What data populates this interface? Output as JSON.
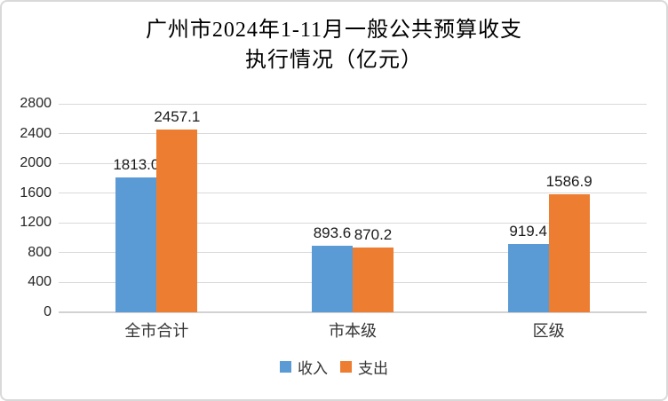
{
  "chart_data": {
    "type": "bar",
    "title": "广州市2024年1-11月一般公共预算收支执行情况（亿元）",
    "title_line1": "广州市2024年1-11月一般公共预算收支",
    "title_line2": "执行情况（亿元）",
    "unit": "亿元",
    "categories": [
      "全市合计",
      "市本级",
      "区级"
    ],
    "series": [
      {
        "key": "income",
        "name": "收入",
        "color": "#5B9BD5",
        "values": [
          1813.0,
          893.6,
          919.4
        ],
        "labels": [
          "1813.0",
          "893.6",
          "919.4"
        ]
      },
      {
        "key": "expenditure",
        "name": "支出",
        "color": "#ED7D31",
        "values": [
          2457.1,
          870.2,
          1586.9
        ],
        "labels": [
          "2457.1",
          "870.2",
          "1586.9"
        ]
      }
    ],
    "xlabel": "",
    "ylabel": "",
    "ylim": [
      0,
      2800
    ],
    "yticks": [
      0,
      400,
      800,
      1200,
      1600,
      2000,
      2400,
      2800
    ],
    "grid": true,
    "legend_position": "bottom",
    "colors": {
      "gridline": "#D9D9D9",
      "axis_line": "#D2D2D2",
      "tick_text": "#262626",
      "label_text": "#1A1A1A",
      "frame_border": "#D9D9D9"
    }
  }
}
